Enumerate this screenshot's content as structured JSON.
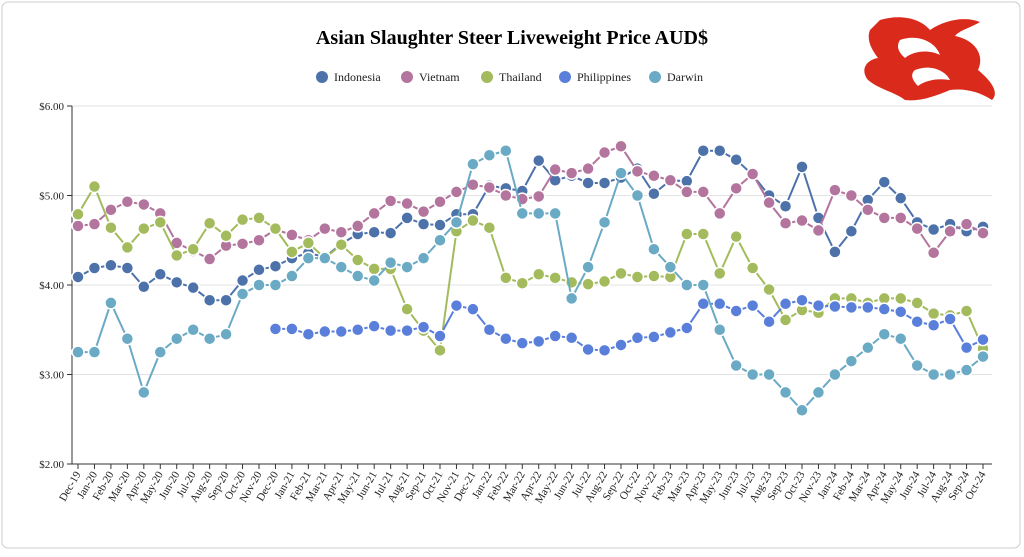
{
  "chart_data": {
    "type": "line",
    "title": "Asian Slaughter Steer Liveweight Price AUD$",
    "categories": [
      "Dec-19",
      "Jan-20",
      "Feb-20",
      "Mar-20",
      "Apr-20",
      "May-20",
      "Jun-20",
      "Jul-20",
      "Aug-20",
      "Sep-20",
      "Oct-20",
      "Nov-20",
      "Dec-20",
      "Jan-21",
      "Feb-21",
      "Mar-21",
      "Apr-21",
      "May-21",
      "Jun-21",
      "Jul-21",
      "Aug-21",
      "Sep-21",
      "Oct-21",
      "Nov-21",
      "Dec-21",
      "Jan-22",
      "Feb-22",
      "Mar-22",
      "Apr-22",
      "May-22",
      "Jun-22",
      "Jul-22",
      "Aug-22",
      "Sep-22",
      "Oct-22",
      "Nov-22",
      "Feb-23",
      "Mar-23",
      "Apr-23",
      "May-23",
      "Jun-23",
      "Jul-23",
      "Aug-23",
      "Sep-23",
      "Oct-23",
      "Nov-23",
      "Jan-24",
      "Feb-24",
      "Mar-24",
      "Apr-24",
      "May-24",
      "Jun-24",
      "Jul-24",
      "Aug-24",
      "Sep-24",
      "Oct-24"
    ],
    "series": [
      {
        "name": "Indonesia",
        "color": "#4d72aa",
        "values": [
          4.09,
          4.19,
          4.22,
          4.19,
          3.98,
          4.12,
          4.03,
          3.97,
          3.83,
          3.83,
          4.05,
          4.17,
          4.21,
          4.3,
          4.36,
          4.31,
          4.46,
          4.57,
          4.59,
          4.58,
          4.75,
          4.68,
          4.67,
          4.79,
          4.79,
          5.11,
          5.08,
          5.05,
          5.39,
          5.17,
          5.22,
          5.14,
          5.14,
          5.2,
          5.3,
          5.02,
          5.17,
          5.16,
          5.5,
          5.5,
          5.4,
          5.23,
          5.0,
          4.88,
          5.32,
          4.75,
          4.37,
          4.6,
          4.95,
          5.15,
          4.97,
          4.7,
          4.62,
          4.68,
          4.6,
          4.65
        ]
      },
      {
        "name": "Vietnam",
        "color": "#b3749d",
        "values": [
          4.66,
          4.68,
          4.84,
          4.93,
          4.9,
          4.8,
          4.47,
          4.38,
          4.29,
          4.44,
          4.46,
          4.5,
          4.62,
          4.56,
          4.5,
          4.63,
          4.59,
          4.66,
          4.8,
          4.94,
          4.91,
          4.82,
          4.93,
          5.04,
          5.12,
          5.09,
          5.0,
          4.96,
          4.99,
          5.29,
          5.25,
          5.3,
          5.48,
          5.55,
          5.27,
          5.22,
          5.17,
          5.04,
          5.04,
          4.8,
          5.08,
          5.24,
          4.92,
          4.69,
          4.72,
          4.61,
          5.06,
          5.0,
          4.84,
          4.75,
          4.75,
          4.63,
          4.36,
          4.6,
          4.68,
          4.58
        ]
      },
      {
        "name": "Thailand",
        "color": "#a3bb5c",
        "values": [
          4.79,
          5.1,
          4.64,
          4.42,
          4.63,
          4.7,
          4.33,
          4.4,
          4.69,
          4.55,
          4.73,
          4.75,
          4.63,
          4.37,
          4.47,
          4.3,
          4.45,
          4.28,
          4.18,
          4.18,
          3.73,
          3.49,
          3.27,
          4.6,
          4.72,
          4.64,
          4.08,
          4.02,
          4.12,
          4.08,
          4.03,
          4.01,
          4.04,
          4.13,
          4.09,
          4.1,
          4.09,
          4.57,
          4.57,
          4.13,
          4.54,
          4.19,
          3.95,
          3.61,
          3.72,
          3.69,
          3.85,
          3.85,
          3.8,
          3.85,
          3.85,
          3.8,
          3.68,
          3.66,
          3.71,
          3.29
        ]
      },
      {
        "name": "Philippines",
        "color": "#5a7fdb",
        "values": [
          null,
          null,
          null,
          null,
          null,
          null,
          null,
          null,
          null,
          null,
          null,
          null,
          3.51,
          3.51,
          3.45,
          3.48,
          3.48,
          3.5,
          3.54,
          3.49,
          3.49,
          3.53,
          3.43,
          3.77,
          3.73,
          3.5,
          3.4,
          3.35,
          3.37,
          3.43,
          3.41,
          3.28,
          3.27,
          3.33,
          3.41,
          3.42,
          3.47,
          3.52,
          3.79,
          3.79,
          3.71,
          3.77,
          3.59,
          3.79,
          3.83,
          3.77,
          3.76,
          3.75,
          3.75,
          3.73,
          3.7,
          3.59,
          3.55,
          3.62,
          3.3,
          3.39
        ]
      },
      {
        "name": "Darwin",
        "color": "#6aaac4",
        "values": [
          3.25,
          3.25,
          3.8,
          3.4,
          2.8,
          3.25,
          3.4,
          3.5,
          3.4,
          3.45,
          3.9,
          4.0,
          4.0,
          4.1,
          4.3,
          4.3,
          4.2,
          4.1,
          4.05,
          4.25,
          4.2,
          4.3,
          4.5,
          4.7,
          5.35,
          5.45,
          5.5,
          4.8,
          4.8,
          4.8,
          3.85,
          4.2,
          4.7,
          5.25,
          5.0,
          4.4,
          4.2,
          4.0,
          4.0,
          3.5,
          3.1,
          3.0,
          3.0,
          2.8,
          2.6,
          2.8,
          3.0,
          3.15,
          3.3,
          3.45,
          3.4,
          3.1,
          3.0,
          3.0,
          3.05,
          3.2
        ]
      }
    ],
    "ylim": [
      2,
      6
    ],
    "yticks": [
      {
        "value": 2,
        "label": "$2.00"
      },
      {
        "value": 3,
        "label": "$3.00"
      },
      {
        "value": 4,
        "label": "$4.00"
      },
      {
        "value": 5,
        "label": "$5.00"
      },
      {
        "value": 6,
        "label": "$6.00"
      }
    ],
    "grid": true,
    "legend": "top"
  }
}
